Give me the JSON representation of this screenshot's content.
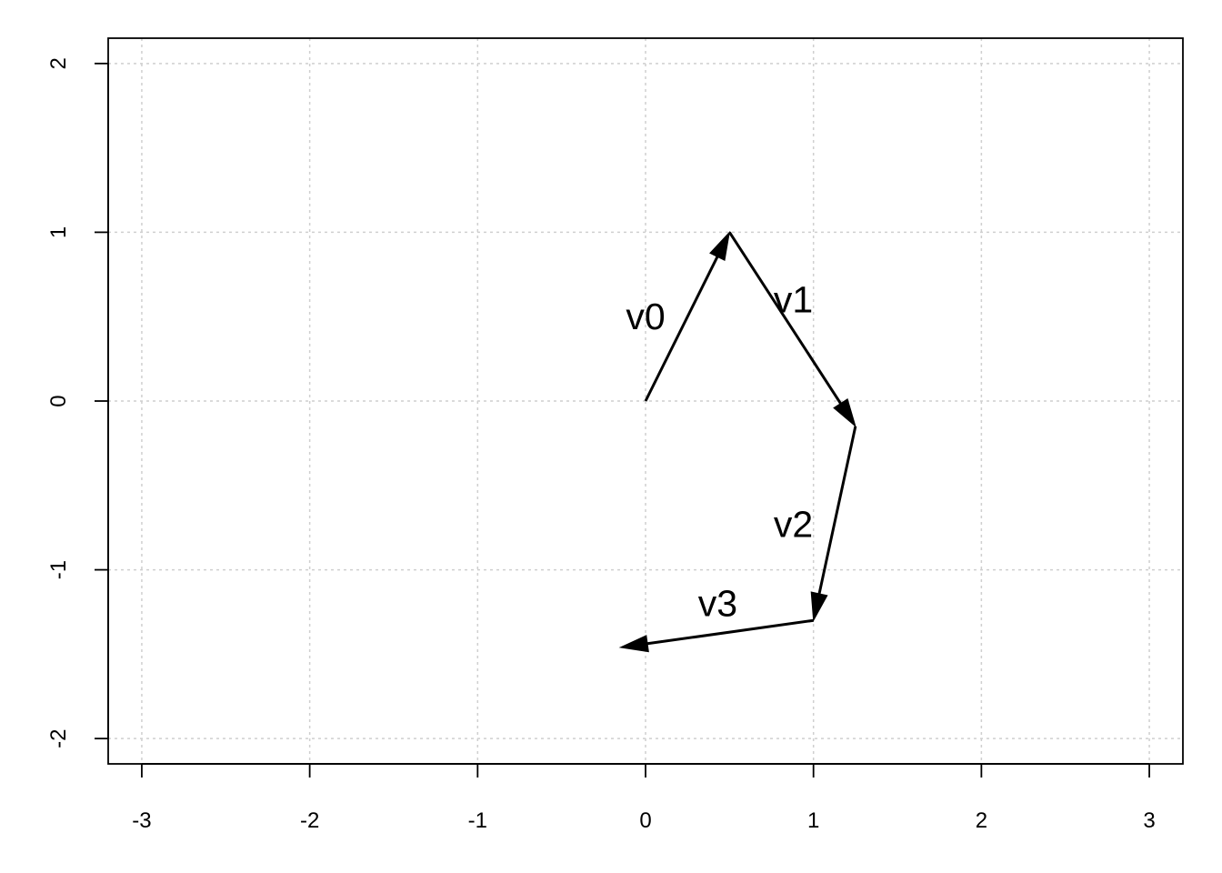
{
  "chart_data": {
    "type": "line",
    "title": "",
    "xlabel": "",
    "ylabel": "",
    "xlim": [
      -3.2,
      3.2
    ],
    "ylim": [
      -2.15,
      2.15
    ],
    "x_ticks": [
      -3,
      -2,
      -1,
      0,
      1,
      2,
      3
    ],
    "x_tick_labels": [
      "-3",
      "-2",
      "-1",
      "0",
      "1",
      "2",
      "3"
    ],
    "y_ticks": [
      -2,
      -1,
      0,
      1,
      2
    ],
    "y_tick_labels": [
      "-2",
      "-1",
      "0",
      "1",
      "2"
    ],
    "grid": true,
    "grid_color": "#cfcfcf",
    "line_color": "#000000",
    "vectors": [
      {
        "name": "v0",
        "from": [
          0,
          0
        ],
        "to": [
          0.5,
          1.0
        ],
        "label_at": [
          0,
          0.5
        ]
      },
      {
        "name": "v1",
        "from": [
          0.5,
          1.0
        ],
        "to": [
          1.25,
          -0.15
        ],
        "label_at": [
          0.88,
          0.6
        ]
      },
      {
        "name": "v2",
        "from": [
          1.25,
          -0.15
        ],
        "to": [
          1.0,
          -1.3
        ],
        "label_at": [
          0.88,
          -0.73
        ]
      },
      {
        "name": "v3",
        "from": [
          1.0,
          -1.3
        ],
        "to": [
          -0.15,
          -1.46
        ],
        "label_at": [
          0.43,
          -1.2
        ]
      }
    ]
  }
}
